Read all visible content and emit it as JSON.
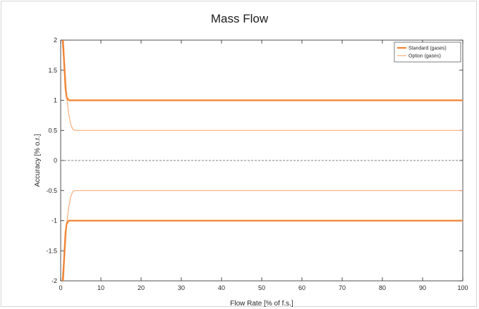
{
  "chart_data": {
    "type": "line",
    "title": "Mass Flow",
    "xlabel": "Flow Rate [% of f.s.]",
    "ylabel": "Accuracy [% o.r.]",
    "xlim": [
      0,
      100
    ],
    "ylim": [
      -2,
      2
    ],
    "xticks": [
      0,
      10,
      20,
      30,
      40,
      50,
      60,
      70,
      80,
      90,
      100
    ],
    "yticks": [
      -2,
      -1.5,
      -1,
      -0.5,
      0,
      0.5,
      1,
      1.5,
      2
    ],
    "grid": false,
    "legend_position": "top-right",
    "zero_line": {
      "y": 0,
      "style": "dashed",
      "color": "#555555"
    },
    "series": [
      {
        "name": "Standard (gases)",
        "color": "#f08232",
        "thick": true,
        "upper": {
          "x": [
            0.5,
            0.8,
            1.0,
            1.2,
            1.5,
            2.0,
            3.0,
            5.0,
            100
          ],
          "y": [
            2.0,
            1.7,
            1.45,
            1.2,
            1.05,
            1.0,
            1.0,
            1.0,
            1.0
          ]
        },
        "lower": {
          "x": [
            0.5,
            0.8,
            1.0,
            1.2,
            1.5,
            2.0,
            3.0,
            5.0,
            100
          ],
          "y": [
            -2.0,
            -1.7,
            -1.45,
            -1.2,
            -1.05,
            -1.0,
            -1.0,
            -1.0,
            -1.0
          ]
        }
      },
      {
        "name": "Option (gases)",
        "color": "#f6a46a",
        "thick": false,
        "upper": {
          "x": [
            0.7,
            1.0,
            1.5,
            2.0,
            2.5,
            3.0,
            3.5,
            5.0,
            100
          ],
          "y": [
            2.0,
            1.6,
            1.05,
            0.78,
            0.6,
            0.52,
            0.5,
            0.5,
            0.5
          ]
        },
        "lower": {
          "x": [
            0.7,
            1.0,
            1.5,
            2.0,
            2.5,
            3.0,
            3.5,
            5.0,
            100
          ],
          "y": [
            -2.0,
            -1.6,
            -1.05,
            -0.78,
            -0.6,
            -0.52,
            -0.5,
            -0.5,
            -0.5
          ]
        }
      }
    ]
  }
}
